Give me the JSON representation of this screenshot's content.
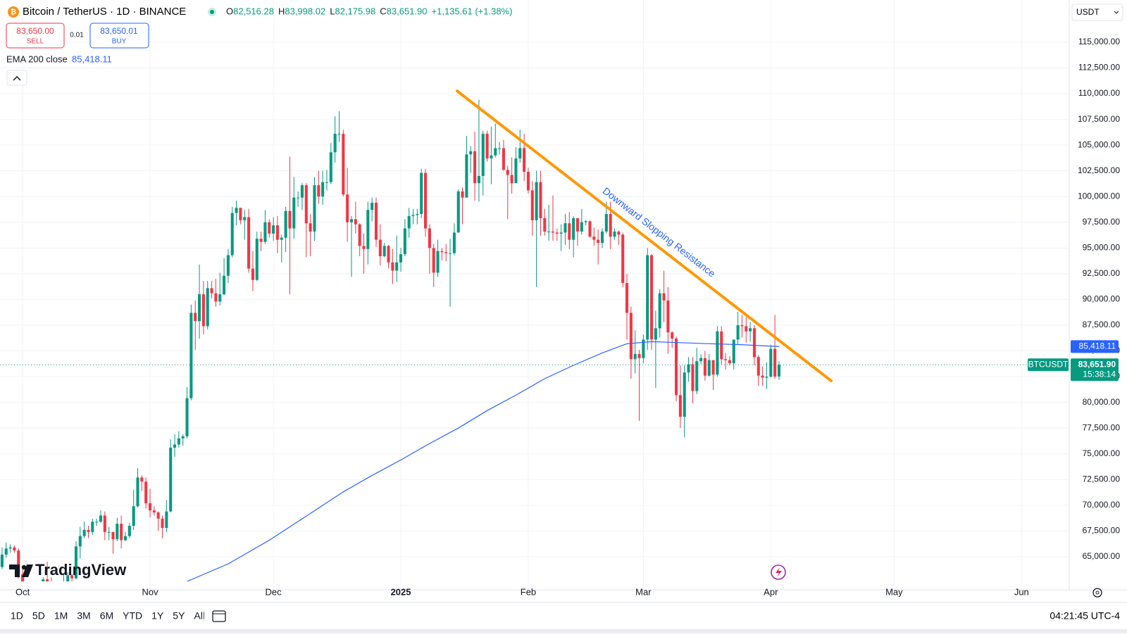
{
  "header": {
    "symbol": "Bitcoin / TetherUS · 1D · BINANCE",
    "ohlc": [
      {
        "key": "O",
        "value": "82,516.28"
      },
      {
        "key": "H",
        "value": "83,998.02"
      },
      {
        "key": "L",
        "value": "82,175.98"
      },
      {
        "key": "C",
        "value": "83,651.90"
      }
    ],
    "change": "+1,135.61 (+1.38%)",
    "currency": "USDT"
  },
  "trade": {
    "sell_price": "83,650.00",
    "sell": "SELL",
    "spread": "0.01",
    "buy_price": "83,650.01",
    "buy": "BUY"
  },
  "indicator": {
    "name": "EMA 200 close",
    "value": "85,418.11"
  },
  "toolbar": {
    "ranges": [
      "1D",
      "5D",
      "1M",
      "3M",
      "6M",
      "YTD",
      "1Y",
      "5Y",
      "All"
    ],
    "clock": "04:21:45 UTC-4"
  },
  "logo": "TradingView",
  "chart_data": {
    "type": "candlestick",
    "up_color": "#089981",
    "down_color": "#f23645",
    "grid": true,
    "xlim": [
      -0.5,
      259.6
    ],
    "ylim": [
      62600,
      119100
    ],
    "xticks": [
      {
        "value": 5,
        "label": "Oct"
      },
      {
        "value": 36,
        "label": "Nov"
      },
      {
        "value": 66,
        "label": "Dec"
      },
      {
        "value": 97,
        "label": "2025"
      },
      {
        "value": 128,
        "label": "Feb"
      },
      {
        "value": 156,
        "label": "Mar"
      },
      {
        "value": 187,
        "label": "Apr"
      },
      {
        "value": 217,
        "label": "May"
      },
      {
        "value": 248,
        "label": "Jun"
      }
    ],
    "yticks": [
      {
        "value": 65000,
        "label": "65,000.00"
      },
      {
        "value": 67500,
        "label": "67,500.00"
      },
      {
        "value": 70000,
        "label": "70,000.00"
      },
      {
        "value": 72500,
        "label": "72,500.00"
      },
      {
        "value": 75000,
        "label": "75,000.00"
      },
      {
        "value": 77500,
        "label": "77,500.00"
      },
      {
        "value": 80000,
        "label": "80,000.00"
      },
      {
        "value": 82500,
        "label": "82,500.00"
      },
      {
        "value": 85000,
        "label": "85,000.00"
      },
      {
        "value": 87500,
        "label": "87,500.00"
      },
      {
        "value": 90000,
        "label": "90,000.00"
      },
      {
        "value": 92500,
        "label": "92,500.00"
      },
      {
        "value": 95000,
        "label": "95,000.00"
      },
      {
        "value": 97500,
        "label": "97,500.00"
      },
      {
        "value": 100000,
        "label": "100,000.00"
      },
      {
        "value": 102500,
        "label": "102,500.00"
      },
      {
        "value": 105000,
        "label": "105,000.00"
      },
      {
        "value": 107500,
        "label": "107,500.00"
      },
      {
        "value": 110000,
        "label": "110,000.00"
      },
      {
        "value": 112500,
        "label": "112,500.00"
      },
      {
        "value": 115000,
        "label": "115,000.00"
      }
    ],
    "candles": [
      [
        64000,
        65900,
        63800,
        65200
      ],
      [
        65200,
        66400,
        64900,
        65800
      ],
      [
        65800,
        66200,
        65400,
        65900
      ],
      [
        65900,
        66100,
        65400,
        65600
      ],
      [
        65600,
        65800,
        62900,
        63300
      ],
      [
        63300,
        64100,
        60200,
        60800
      ],
      [
        60800,
        62400,
        60000,
        60600
      ],
      [
        60600,
        61400,
        59800,
        60800
      ],
      [
        60800,
        62400,
        60400,
        62100
      ],
      [
        62100,
        62400,
        61600,
        62100
      ],
      [
        62100,
        63000,
        61800,
        62800
      ],
      [
        62800,
        64500,
        62100,
        62200
      ],
      [
        62200,
        63000,
        61800,
        62100
      ],
      [
        62100,
        62500,
        60300,
        60600
      ],
      [
        60600,
        61300,
        58900,
        60300
      ],
      [
        60300,
        63400,
        60100,
        62500
      ],
      [
        62500,
        63500,
        62400,
        63200
      ],
      [
        63200,
        63300,
        62400,
        62900
      ],
      [
        62900,
        66500,
        62800,
        66000
      ],
      [
        66000,
        67900,
        64800,
        67000
      ],
      [
        67000,
        68400,
        66800,
        67600
      ],
      [
        67600,
        68000,
        66800,
        67400
      ],
      [
        67400,
        68700,
        67100,
        68400
      ],
      [
        68400,
        68700,
        68000,
        68400
      ],
      [
        68400,
        69500,
        68300,
        69000
      ],
      [
        69000,
        69400,
        66600,
        67400
      ],
      [
        67400,
        67900,
        66600,
        67400
      ],
      [
        67400,
        67400,
        65300,
        66700
      ],
      [
        66700,
        68800,
        66500,
        68200
      ],
      [
        68200,
        69000,
        65800,
        66600
      ],
      [
        66600,
        67400,
        66500,
        67000
      ],
      [
        67000,
        68300,
        66800,
        68000
      ],
      [
        68000,
        71500,
        67600,
        69900
      ],
      [
        69900,
        73600,
        69800,
        72700
      ],
      [
        72700,
        72900,
        71400,
        72300
      ],
      [
        72300,
        72700,
        69700,
        70200
      ],
      [
        70200,
        71600,
        68800,
        69500
      ],
      [
        69500,
        69900,
        69000,
        69300
      ],
      [
        69300,
        69400,
        67500,
        68700
      ],
      [
        68700,
        69000,
        66800,
        67800
      ],
      [
        67800,
        70500,
        67400,
        69400
      ],
      [
        69400,
        76400,
        69300,
        75600
      ],
      [
        75600,
        76900,
        74700,
        75900
      ],
      [
        75900,
        77200,
        75600,
        76500
      ],
      [
        76500,
        76900,
        75800,
        76700
      ],
      [
        76700,
        81500,
        76500,
        80400
      ],
      [
        80400,
        89500,
        80200,
        88700
      ],
      [
        88700,
        89900,
        85100,
        87900
      ],
      [
        87900,
        93400,
        86200,
        90500
      ],
      [
        90500,
        91800,
        86600,
        87400
      ],
      [
        87400,
        91800,
        87100,
        91100
      ],
      [
        91100,
        91800,
        90100,
        90600
      ],
      [
        90600,
        92000,
        89300,
        89800
      ],
      [
        89800,
        92600,
        89400,
        90500
      ],
      [
        90500,
        94000,
        90400,
        92300
      ],
      [
        92300,
        94900,
        91600,
        94300
      ],
      [
        94300,
        99000,
        94100,
        98400
      ],
      [
        98400,
        99600,
        97200,
        98900
      ],
      [
        98900,
        98900,
        97300,
        97700
      ],
      [
        97700,
        98700,
        95800,
        98000
      ],
      [
        98000,
        98800,
        92600,
        93000
      ],
      [
        93000,
        94700,
        90800,
        91900
      ],
      [
        91900,
        96600,
        91800,
        95900
      ],
      [
        95900,
        96600,
        94700,
        95600
      ],
      [
        95600,
        98700,
        95400,
        97500
      ],
      [
        97500,
        97800,
        96000,
        96400
      ],
      [
        96400,
        98000,
        95700,
        97200
      ],
      [
        97200,
        98100,
        94500,
        95800
      ],
      [
        95800,
        96300,
        93600,
        96000
      ],
      [
        96000,
        99000,
        94600,
        98600
      ],
      [
        98600,
        103900,
        90500,
        96900
      ],
      [
        96900,
        101900,
        95900,
        99900
      ],
      [
        99900,
        100500,
        99000,
        99900
      ],
      [
        99900,
        101300,
        98700,
        101100
      ],
      [
        101100,
        101300,
        94100,
        97400
      ],
      [
        97400,
        98300,
        94200,
        96600
      ],
      [
        96600,
        101900,
        95700,
        101100
      ],
      [
        101100,
        102500,
        99300,
        100000
      ],
      [
        100000,
        102500,
        99200,
        101400
      ],
      [
        101400,
        102600,
        100600,
        101400
      ],
      [
        101400,
        105200,
        101200,
        104300
      ],
      [
        104300,
        107800,
        103300,
        106100
      ],
      [
        106100,
        108300,
        105300,
        106100
      ],
      [
        106100,
        106500,
        100000,
        100200
      ],
      [
        100200,
        102800,
        95600,
        97500
      ],
      [
        97500,
        98100,
        92200,
        97800
      ],
      [
        97800,
        99500,
        96400,
        97300
      ],
      [
        97300,
        97400,
        94200,
        95200
      ],
      [
        95200,
        96400,
        92500,
        94900
      ],
      [
        94900,
        99500,
        93400,
        98700
      ],
      [
        98700,
        99900,
        97600,
        99400
      ],
      [
        99400,
        99900,
        95100,
        95800
      ],
      [
        95800,
        97300,
        93300,
        94200
      ],
      [
        94200,
        95500,
        94100,
        95200
      ],
      [
        95200,
        95300,
        93000,
        93600
      ],
      [
        93600,
        94900,
        91500,
        92800
      ],
      [
        92800,
        96200,
        91700,
        93600
      ],
      [
        93600,
        95000,
        92700,
        94400
      ],
      [
        94400,
        97800,
        94200,
        96900
      ],
      [
        96900,
        98900,
        96000,
        98100
      ],
      [
        98100,
        98800,
        97300,
        98200
      ],
      [
        98200,
        98800,
        97300,
        98300
      ],
      [
        98300,
        102700,
        97900,
        102300
      ],
      [
        102300,
        102700,
        96100,
        96900
      ],
      [
        96900,
        97300,
        92500,
        95000
      ],
      [
        95000,
        95400,
        91200,
        92600
      ],
      [
        92600,
        95800,
        92200,
        94700
      ],
      [
        94700,
        95000,
        93800,
        94600
      ],
      [
        94600,
        95400,
        93700,
        94500
      ],
      [
        94500,
        95900,
        89300,
        94500
      ],
      [
        94500,
        97400,
        94300,
        96500
      ],
      [
        96500,
        100700,
        96500,
        100500
      ],
      [
        100500,
        100900,
        97300,
        99900
      ],
      [
        99900,
        105900,
        99900,
        104100
      ],
      [
        104100,
        104900,
        102300,
        104400
      ],
      [
        104400,
        106300,
        99600,
        101300
      ],
      [
        101300,
        109400,
        99500,
        102000
      ],
      [
        102000,
        106400,
        100100,
        106100
      ],
      [
        106100,
        106400,
        103400,
        103700
      ],
      [
        103700,
        106800,
        101200,
        104000
      ],
      [
        104000,
        107100,
        103800,
        104700
      ],
      [
        104700,
        105300,
        104100,
        104700
      ],
      [
        104700,
        105500,
        102500,
        102600
      ],
      [
        102600,
        103000,
        97800,
        102100
      ],
      [
        102100,
        103800,
        100300,
        101300
      ],
      [
        101300,
        104800,
        101300,
        103700
      ],
      [
        103700,
        106500,
        103300,
        104700
      ],
      [
        104700,
        106100,
        101500,
        102400
      ],
      [
        102400,
        102800,
        100300,
        100600
      ],
      [
        100600,
        101500,
        96200,
        97700
      ],
      [
        97700,
        102500,
        91200,
        101400
      ],
      [
        101400,
        102500,
        96200,
        97900
      ],
      [
        97900,
        98800,
        96200,
        96600
      ],
      [
        96600,
        99200,
        95700,
        96600
      ],
      [
        96600,
        100100,
        95700,
        96500
      ],
      [
        96500,
        96900,
        95700,
        96400
      ],
      [
        96400,
        97300,
        94700,
        96500
      ],
      [
        96500,
        98300,
        95300,
        97400
      ],
      [
        97400,
        98500,
        94900,
        95800
      ],
      [
        95800,
        98100,
        94100,
        97900
      ],
      [
        97900,
        97900,
        95200,
        96600
      ],
      [
        96600,
        98800,
        96300,
        97500
      ],
      [
        97500,
        97700,
        97200,
        97600
      ],
      [
        97600,
        97700,
        96000,
        96100
      ],
      [
        96100,
        97000,
        95200,
        95800
      ],
      [
        95800,
        96800,
        93400,
        95500
      ],
      [
        95500,
        96900,
        95000,
        96600
      ],
      [
        96600,
        99500,
        96400,
        98300
      ],
      [
        98300,
        99500,
        94900,
        96100
      ],
      [
        96100,
        96900,
        95800,
        96600
      ],
      [
        96600,
        96700,
        95300,
        96300
      ],
      [
        96300,
        96500,
        91200,
        91600
      ],
      [
        91600,
        92500,
        86100,
        88700
      ],
      [
        88700,
        89300,
        82300,
        84200
      ],
      [
        84200,
        87000,
        82800,
        84700
      ],
      [
        84700,
        85100,
        78200,
        84300
      ],
      [
        84300,
        86600,
        83800,
        86100
      ],
      [
        86100,
        95000,
        85100,
        94300
      ],
      [
        94300,
        94400,
        85100,
        86100
      ],
      [
        86100,
        88900,
        81400,
        87200
      ],
      [
        87200,
        91000,
        86300,
        90600
      ],
      [
        90600,
        92800,
        87800,
        89900
      ],
      [
        89900,
        91200,
        84700,
        86800
      ],
      [
        86800,
        86900,
        85300,
        86200
      ],
      [
        86200,
        86400,
        80100,
        80700
      ],
      [
        80700,
        83600,
        77500,
        78600
      ],
      [
        78600,
        83600,
        76600,
        82900
      ],
      [
        82900,
        84400,
        82000,
        83700
      ],
      [
        83700,
        84400,
        79900,
        81100
      ],
      [
        81100,
        85300,
        80800,
        84000
      ],
      [
        84000,
        84700,
        83700,
        84300
      ],
      [
        84300,
        85000,
        82100,
        82600
      ],
      [
        82600,
        84700,
        82500,
        84100
      ],
      [
        84100,
        84100,
        81200,
        82700
      ],
      [
        82700,
        87400,
        82500,
        86900
      ],
      [
        86900,
        87400,
        83700,
        84200
      ],
      [
        84200,
        84800,
        83200,
        84100
      ],
      [
        84100,
        84500,
        83600,
        83800
      ],
      [
        83800,
        86100,
        83200,
        86100
      ],
      [
        86100,
        88800,
        85600,
        87500
      ],
      [
        87500,
        88500,
        86300,
        87400
      ],
      [
        87400,
        88300,
        85800,
        86900
      ],
      [
        86900,
        87800,
        85900,
        87200
      ],
      [
        87200,
        87500,
        83600,
        84400
      ],
      [
        84400,
        84600,
        81600,
        82600
      ],
      [
        82600,
        83500,
        81600,
        82400
      ],
      [
        82400,
        83900,
        81300,
        82500
      ],
      [
        82500,
        85600,
        82400,
        85200
      ],
      [
        85200,
        88500,
        82300,
        82500
      ],
      [
        82516.28,
        83998.02,
        82175.98,
        83651.9
      ]
    ],
    "ema": {
      "color": "#2962ff",
      "x": [
        45,
        55,
        65,
        75,
        83,
        90,
        97,
        104,
        111,
        118,
        125,
        132,
        139,
        146,
        152,
        158,
        165,
        172,
        180,
        189
      ],
      "values": [
        62600,
        64300,
        66600,
        69200,
        71300,
        72900,
        74400,
        76000,
        77500,
        79200,
        80700,
        82300,
        83600,
        84800,
        85700,
        85900,
        85800,
        85700,
        85600,
        85418.11
      ],
      "value_label": "85,418.11"
    },
    "trendline": {
      "color": "#ff9800",
      "x": [
        110.7,
        201.7
      ],
      "values": [
        110260,
        82090
      ],
      "label": "Downward Slopping Resistance",
      "label_color": "#2962ff"
    },
    "last_price": {
      "value": 83651.9,
      "label": "83,651.90",
      "symbol": "BTCUSDT",
      "countdown": "15:38:14"
    }
  }
}
